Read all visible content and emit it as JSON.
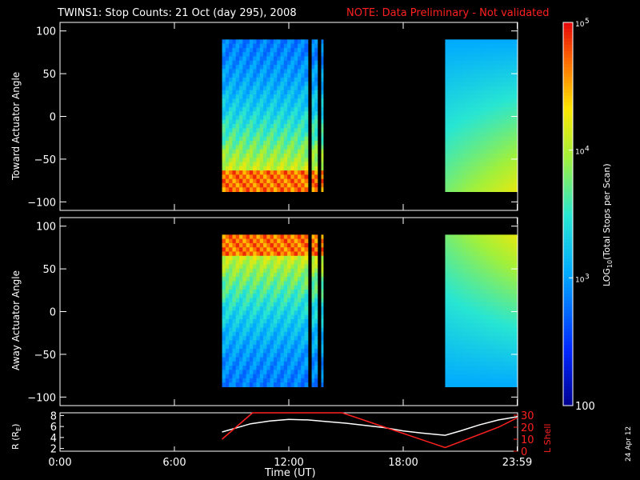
{
  "title": "TWINS1: Stop Counts: 21 Oct (day 295), 2008",
  "note": "NOTE: Data Preliminary - Not validated",
  "date_stamp": "24 Apr 12",
  "chart_data": [
    {
      "type": "heatmap",
      "panel": "toward",
      "ylabel": "Toward Actuator Angle",
      "ylim": [
        -110,
        110
      ],
      "yticks": [
        100,
        50,
        0,
        -50,
        -100
      ],
      "xlim": [
        0,
        24
      ],
      "segments": [
        {
          "start": 8.5,
          "end": 13.0
        },
        {
          "start": 13.2,
          "end": 13.5
        },
        {
          "start": 13.7,
          "end": 13.8
        },
        {
          "start": 20.2,
          "end": 23.99
        }
      ],
      "angle_range": [
        -88,
        90
      ],
      "description_values": {
        "low_angles": "high counts",
        "high_angles": "low counts"
      }
    },
    {
      "type": "heatmap",
      "panel": "away",
      "ylabel": "Away Actuator Angle",
      "ylim": [
        -110,
        110
      ],
      "yticks": [
        100,
        50,
        0,
        -50,
        -100
      ],
      "xlim": [
        0,
        24
      ],
      "segments": [
        {
          "start": 8.5,
          "end": 13.0
        },
        {
          "start": 13.2,
          "end": 13.5
        },
        {
          "start": 13.7,
          "end": 13.8
        },
        {
          "start": 20.2,
          "end": 23.99
        }
      ],
      "angle_range": [
        -88,
        90
      ]
    },
    {
      "type": "line",
      "panel": "orbit",
      "xlabel": "Time (UT)",
      "xticks": [
        "0:00",
        "6:00",
        "12:00",
        "18:00",
        "23:59"
      ],
      "xtick_values": [
        0,
        6,
        12,
        18,
        23.98
      ],
      "ylabel_left": "R (R",
      "ylabel_left_sub": "E",
      "ylabel_left_end": ")",
      "ylabel_right": "L Shell",
      "yticks_left": [
        "8",
        "6",
        "4",
        "2"
      ],
      "yticks_right": [
        "30",
        "20",
        "10",
        "0"
      ],
      "ylim_left": [
        1.5,
        8.5
      ],
      "ylim_right": [
        0,
        32
      ],
      "series": [
        {
          "color": "#ffffff",
          "x": [
            8.5,
            10,
            11,
            12,
            13,
            14,
            15,
            16,
            17,
            18,
            19,
            20.2,
            21,
            22,
            23,
            24
          ],
          "y": [
            5.0,
            6.5,
            7.0,
            7.3,
            7.2,
            6.9,
            6.6,
            6.2,
            5.8,
            5.2,
            4.8,
            4.4,
            5.2,
            6.3,
            7.2,
            7.8
          ]
        },
        {
          "color": "#ff2020",
          "x": [
            8.5,
            10.1,
            14.8,
            20.2,
            23.0,
            24
          ],
          "y": [
            10,
            32,
            32,
            3,
            20,
            28
          ]
        }
      ]
    },
    {
      "type": "colorbar",
      "label": "LOG",
      "label_sub": "10",
      "label_end": "(Total Stops per Scan)",
      "ticks": [
        "10",
        "5",
        "10",
        "4",
        "10",
        "3",
        "100"
      ],
      "range_log": [
        2,
        5
      ]
    }
  ]
}
